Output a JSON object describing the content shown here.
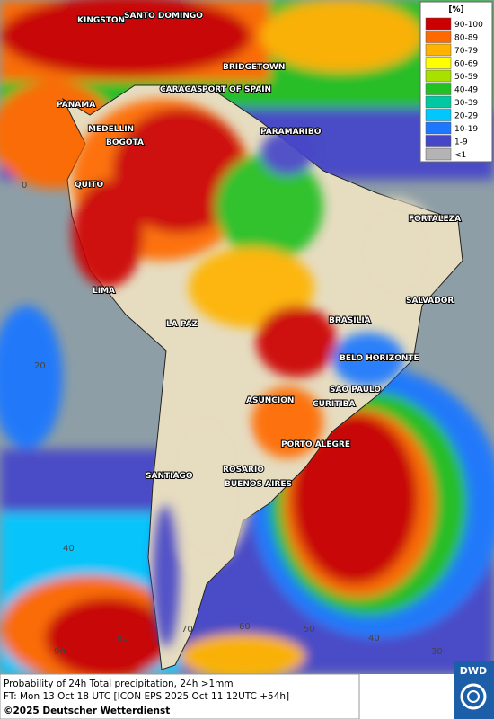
{
  "legend": {
    "title": "[%]",
    "items": [
      {
        "label": "90-100",
        "color": "#cc0000"
      },
      {
        "label": "80-89",
        "color": "#ff6a00"
      },
      {
        "label": "70-79",
        "color": "#ffb300"
      },
      {
        "label": "60-69",
        "color": "#ffff00"
      },
      {
        "label": "50-59",
        "color": "#a8e000"
      },
      {
        "label": "40-49",
        "color": "#22c022"
      },
      {
        "label": "30-39",
        "color": "#00c8a0"
      },
      {
        "label": "20-29",
        "color": "#00c8ff"
      },
      {
        "label": "10-19",
        "color": "#1e78ff"
      },
      {
        "label": "1-9",
        "color": "#4646c8"
      },
      {
        "label": "<1",
        "color": "#b4b4b4"
      }
    ]
  },
  "cities": [
    "KINGSTON",
    "SANTO DOMINGO",
    "BRIDGETOWN",
    "CARACAS",
    "PORT OF SPAIN",
    "PANAMA",
    "MEDELLIN",
    "BOGOTA",
    "PARAMARIBO",
    "QUITO",
    "FORTALEZA",
    "LIMA",
    "SALVADOR",
    "BRASILIA",
    "LA PAZ",
    "BELO HORIZONTE",
    "SAO PAULO",
    "ASUNCION",
    "CURITIBA",
    "PORTO ALEGRE",
    "ROSARIO",
    "BUENOS AIRES",
    "SANTIAGO"
  ],
  "grid_labels": [
    "0",
    "20",
    "40",
    "90",
    "80",
    "70",
    "60",
    "50",
    "40",
    "30"
  ],
  "footer": {
    "line1": "Probability of 24h Total precipitation, 24h >1mm",
    "line2": "FT: Mon 13 Oct 18 UTC [ICON EPS 2025 Oct 11 12UTC +54h]",
    "credit": "©2025 Deutscher Wetterdienst"
  },
  "logo": "DWD"
}
